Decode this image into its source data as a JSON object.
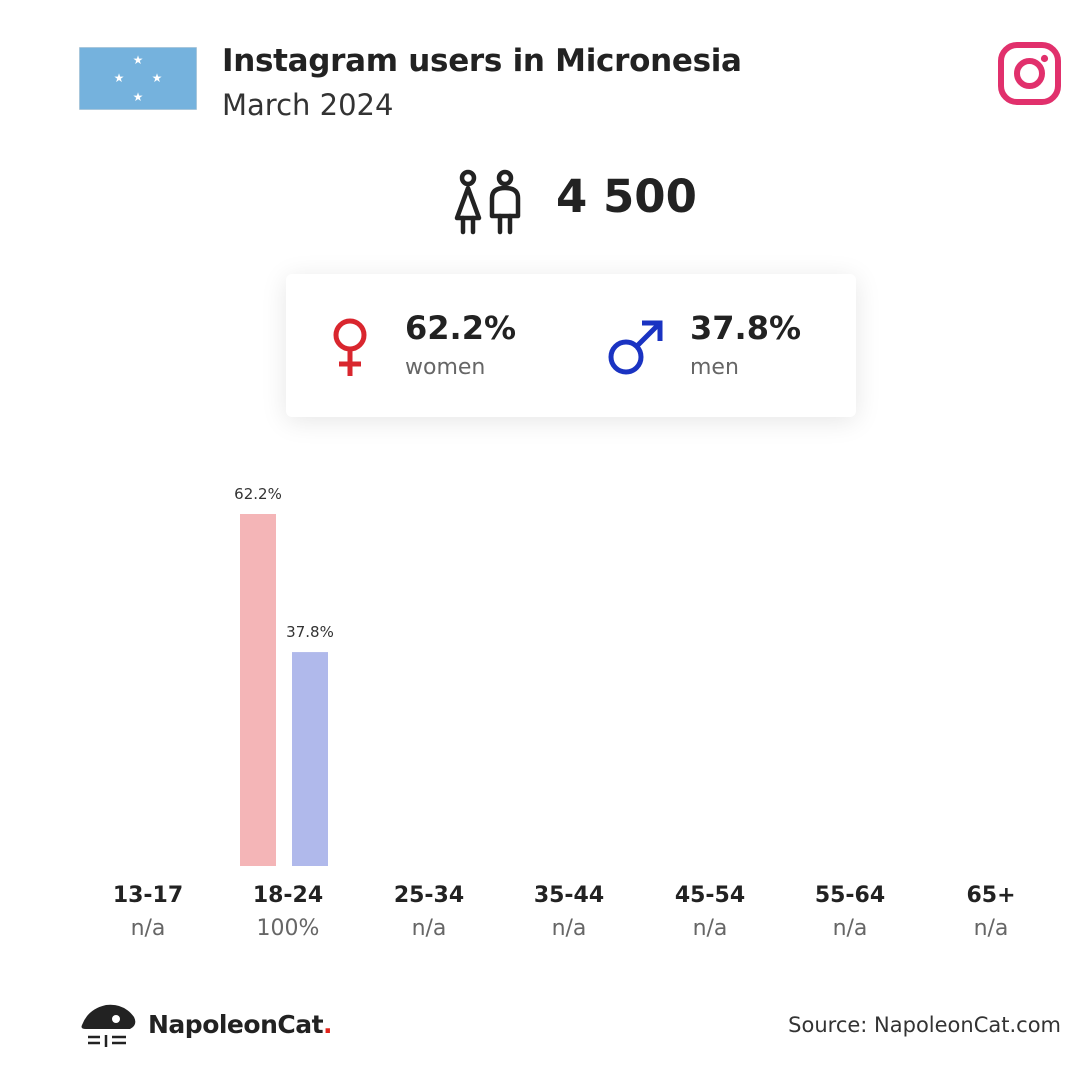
{
  "header": {
    "title": "Instagram users in Micronesia",
    "subtitle": "March 2024"
  },
  "total": {
    "value": "4 500"
  },
  "gender": {
    "women": {
      "percent": "62.2%",
      "label": "women"
    },
    "men": {
      "percent": "37.8%",
      "label": "men"
    }
  },
  "age_groups": [
    {
      "label": "13-17",
      "value": "n/a"
    },
    {
      "label": "18-24",
      "value": "100%"
    },
    {
      "label": "25-34",
      "value": "n/a"
    },
    {
      "label": "35-44",
      "value": "n/a"
    },
    {
      "label": "45-54",
      "value": "n/a"
    },
    {
      "label": "55-64",
      "value": "n/a"
    },
    {
      "label": "65+",
      "value": "n/a"
    }
  ],
  "chart_data": {
    "type": "bar",
    "categories": [
      "13-17",
      "18-24",
      "25-34",
      "35-44",
      "45-54",
      "55-64",
      "65+"
    ],
    "series": [
      {
        "values": [
          null,
          62.2,
          null,
          null,
          null,
          null,
          null
        ],
        "labels": [
          "",
          "62.2%",
          "",
          "",
          "",
          "",
          ""
        ],
        "color": "#f4b5b7"
      },
      {
        "values": [
          null,
          37.8,
          null,
          null,
          null,
          null,
          null
        ],
        "labels": [
          "",
          "37.8%",
          "",
          "",
          "",
          "",
          ""
        ],
        "color": "#b0b9eb"
      }
    ],
    "ylim": [
      0,
      62.2
    ]
  },
  "footer": {
    "brand": "NapoleonCat",
    "brand_dot": ".",
    "source": "Source: NapoleonCat.com"
  },
  "colors": {
    "women": "#d9262e",
    "men": "#1a33c2",
    "instagram": "#e1306c",
    "flag": "#75b2dd"
  },
  "icons": {
    "flag": "micronesia-flag-icon",
    "brand": "instagram-icon",
    "users": "users-icon",
    "women": "female-symbol-icon",
    "men": "male-symbol-icon",
    "logo": "napoleoncat-logo-icon"
  }
}
